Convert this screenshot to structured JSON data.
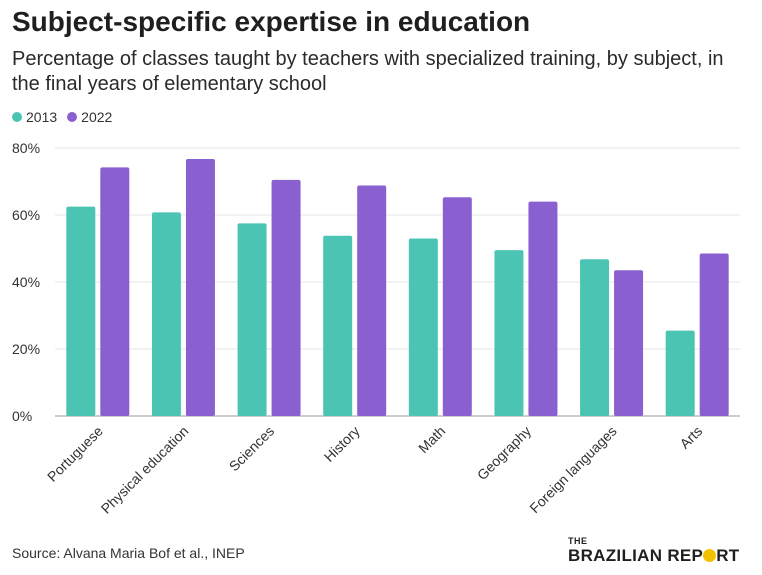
{
  "header": {
    "title": "Subject-specific expertise in education",
    "subtitle": "Percentage of classes taught by teachers with specialized training, by subject, in the final years of elementary school"
  },
  "colors": {
    "2013": "#4cc4b4",
    "2022": "#8a5fd0",
    "grid": "#e6e6e6",
    "axis": "#999999"
  },
  "chart_data": {
    "type": "bar",
    "categories": [
      "Portuguese",
      "Physical education",
      "Sciences",
      "History",
      "Math",
      "Geography",
      "Foreign languages",
      "Arts"
    ],
    "series": [
      {
        "name": "2013",
        "values": [
          62.5,
          60.8,
          57.5,
          53.8,
          53.0,
          49.5,
          46.8,
          25.5
        ]
      },
      {
        "name": "2022",
        "values": [
          74.2,
          76.7,
          70.5,
          68.8,
          65.3,
          64.0,
          43.5,
          48.5
        ]
      }
    ],
    "ylim": [
      0,
      80
    ],
    "yticks": [
      0,
      20,
      40,
      60,
      80
    ],
    "ytick_labels": [
      "0%",
      "20%",
      "40%",
      "60%",
      "80%"
    ],
    "grid": true,
    "legend": "top-left"
  },
  "footer": {
    "source": "Source: Alvana Maria Bof et al., INEP",
    "brand_top": "THE",
    "brand_main_pre": "BRAZILIAN REP",
    "brand_main_post": "RT"
  }
}
